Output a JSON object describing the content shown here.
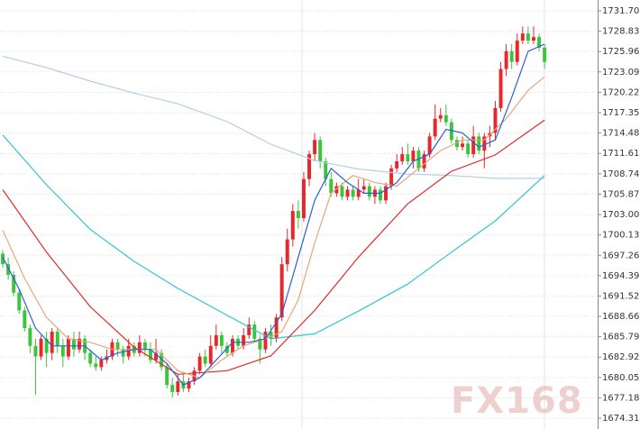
{
  "chart_data": {
    "type": "candlestick",
    "open": [
      1697.5,
      1696.0,
      1694.5,
      1692.0,
      1689.5,
      1687.0,
      1684.5,
      1683.0,
      1685.5,
      1683.5,
      1686.5,
      1684.5,
      1683.0,
      1685.5,
      1684.0,
      1685.5,
      1683.5,
      1682.0,
      1681.5,
      1682.5,
      1683.0,
      1685.0,
      1684.0,
      1683.0,
      1684.5,
      1683.5,
      1685.0,
      1684.0,
      1682.5,
      1683.5,
      1681.5,
      1679.0,
      1678.0,
      1679.5,
      1678.5,
      1679.5,
      1681.0,
      1683.0,
      1682.0,
      1684.5,
      1686.0,
      1684.5,
      1683.5,
      1685.5,
      1684.5,
      1686.0,
      1687.5,
      1685.5,
      1684.0,
      1686.5,
      1685.5,
      1688.5,
      1696.0,
      1699.5,
      1703.5,
      1702.5,
      1708.0,
      1711.5,
      1713.5,
      1710.5,
      1708.0,
      1706.0,
      1707.0,
      1705.5,
      1706.5,
      1705.5,
      1706.5,
      1707.0,
      1705.5,
      1706.5,
      1705.0,
      1707.0,
      1709.5,
      1710.5,
      1711.5,
      1710.5,
      1712.0,
      1709.5,
      1711.5,
      1714.0,
      1716.5,
      1717.0,
      1716.0,
      1713.5,
      1712.5,
      1713.0,
      1711.5,
      1714.0,
      1712.0,
      1714.0,
      1714.5,
      1718.0,
      1723.5,
      1726.0,
      1724.5,
      1727.5,
      1728.5,
      1727.5,
      1728.0,
      1726.5
    ],
    "high": [
      1698.0,
      1697.0,
      1695.0,
      1692.5,
      1690.0,
      1687.5,
      1685.5,
      1686.0,
      1686.5,
      1687.0,
      1687.0,
      1685.5,
      1686.0,
      1686.5,
      1686.5,
      1686.0,
      1684.0,
      1683.0,
      1683.0,
      1684.0,
      1685.5,
      1685.5,
      1684.5,
      1685.5,
      1685.0,
      1686.0,
      1685.5,
      1685.0,
      1685.5,
      1684.0,
      1682.0,
      1680.0,
      1680.5,
      1680.5,
      1680.0,
      1681.5,
      1683.5,
      1684.0,
      1686.0,
      1687.5,
      1686.5,
      1685.0,
      1686.0,
      1686.0,
      1687.0,
      1688.5,
      1688.0,
      1686.0,
      1687.0,
      1687.5,
      1689.0,
      1697.0,
      1701.0,
      1704.5,
      1705.0,
      1709.0,
      1712.0,
      1714.5,
      1714.0,
      1711.0,
      1709.0,
      1707.5,
      1707.5,
      1707.0,
      1707.0,
      1708.0,
      1708.0,
      1707.5,
      1707.0,
      1707.0,
      1707.5,
      1710.0,
      1711.5,
      1712.5,
      1713.0,
      1712.5,
      1712.5,
      1712.0,
      1714.5,
      1718.5,
      1718.0,
      1718.5,
      1716.5,
      1714.0,
      1714.0,
      1713.5,
      1715.5,
      1714.5,
      1714.5,
      1715.5,
      1719.0,
      1724.5,
      1727.0,
      1727.0,
      1728.5,
      1729.5,
      1729.5,
      1729.5,
      1728.5,
      1727.0
    ],
    "low": [
      1695.5,
      1693.8,
      1691.5,
      1689.0,
      1686.5,
      1683.5,
      1677.6,
      1682.5,
      1681.5,
      1682.5,
      1683.5,
      1681.5,
      1682.5,
      1683.0,
      1683.5,
      1682.5,
      1681.5,
      1681.0,
      1681.0,
      1682.0,
      1682.5,
      1683.0,
      1682.0,
      1682.5,
      1683.0,
      1683.0,
      1683.0,
      1682.0,
      1682.0,
      1681.0,
      1678.5,
      1677.2,
      1677.5,
      1678.0,
      1678.0,
      1679.0,
      1680.5,
      1681.5,
      1681.5,
      1684.0,
      1683.5,
      1683.0,
      1683.0,
      1684.0,
      1684.0,
      1685.5,
      1685.0,
      1682.0,
      1683.5,
      1684.5,
      1685.0,
      1688.0,
      1695.0,
      1698.5,
      1701.0,
      1702.0,
      1707.0,
      1710.5,
      1709.5,
      1707.0,
      1705.5,
      1705.5,
      1705.0,
      1705.0,
      1705.0,
      1705.0,
      1706.0,
      1705.0,
      1704.5,
      1704.5,
      1704.5,
      1706.5,
      1709.0,
      1710.0,
      1710.0,
      1709.5,
      1709.0,
      1709.0,
      1711.0,
      1713.5,
      1716.0,
      1715.5,
      1713.0,
      1712.0,
      1712.0,
      1711.0,
      1711.0,
      1711.5,
      1709.5,
      1712.5,
      1713.5,
      1717.5,
      1722.5,
      1723.5,
      1724.0,
      1727.0,
      1727.0,
      1727.0,
      1726.0,
      1723.5
    ],
    "close": [
      1696.0,
      1694.5,
      1692.0,
      1689.5,
      1687.0,
      1684.5,
      1683.0,
      1685.5,
      1683.5,
      1686.5,
      1684.5,
      1683.0,
      1685.5,
      1684.0,
      1685.5,
      1683.5,
      1682.0,
      1681.5,
      1682.5,
      1683.0,
      1685.0,
      1684.0,
      1683.0,
      1684.5,
      1683.5,
      1685.0,
      1684.0,
      1682.5,
      1683.5,
      1681.5,
      1679.0,
      1678.0,
      1679.5,
      1678.5,
      1679.5,
      1681.0,
      1683.0,
      1682.0,
      1684.5,
      1686.0,
      1684.5,
      1683.5,
      1685.5,
      1684.5,
      1686.0,
      1687.5,
      1685.5,
      1684.0,
      1686.5,
      1685.5,
      1688.5,
      1696.0,
      1699.5,
      1703.5,
      1702.5,
      1708.0,
      1711.5,
      1713.5,
      1710.5,
      1708.0,
      1706.0,
      1707.0,
      1705.5,
      1706.5,
      1705.5,
      1706.5,
      1707.0,
      1705.5,
      1706.5,
      1705.0,
      1707.0,
      1709.5,
      1710.5,
      1711.5,
      1710.5,
      1712.0,
      1709.5,
      1711.5,
      1714.0,
      1716.5,
      1717.0,
      1716.0,
      1713.5,
      1712.5,
      1713.0,
      1711.5,
      1714.0,
      1712.0,
      1714.0,
      1714.5,
      1718.0,
      1723.5,
      1726.0,
      1724.5,
      1727.5,
      1728.5,
      1727.5,
      1728.0,
      1726.5,
      1724.5
    ],
    "up_color": "#e8262b",
    "down_color": "#3dc43d",
    "series": [
      {
        "color": "#b8cde6",
        "x": [
          0,
          8,
          16,
          24,
          32,
          41,
          49,
          57,
          65,
          74,
          82,
          90,
          99
        ],
        "values": [
          1725.3,
          1723.7,
          1721.8,
          1720.1,
          1718.6,
          1716.1,
          1712.9,
          1710.6,
          1709.4,
          1708.7,
          1708.5,
          1708.1,
          1708.1
        ]
      },
      {
        "color": "#2fc7d0",
        "x": [
          0,
          8,
          16,
          24,
          32,
          41,
          49,
          57,
          65,
          74,
          82,
          90,
          99
        ],
        "values": [
          1714.2,
          1707.2,
          1700.9,
          1696.4,
          1692.6,
          1688.8,
          1685.5,
          1686.2,
          1689.4,
          1693.2,
          1697.7,
          1702.1,
          1708.5
        ]
      },
      {
        "color": "#e3282a",
        "x": [
          0,
          8,
          16,
          24,
          32,
          41,
          49,
          57,
          65,
          74,
          82,
          90,
          99
        ],
        "values": [
          1706.5,
          1697.7,
          1690.0,
          1684.3,
          1680.5,
          1681.0,
          1683.1,
          1689.5,
          1697.0,
          1704.5,
          1709.1,
          1711.4,
          1716.3
        ]
      },
      {
        "color": "#e4a77a",
        "x": [
          0,
          4,
          8,
          12,
          16,
          20,
          24,
          28,
          32,
          36,
          40,
          44,
          48,
          51,
          54,
          57,
          60,
          64,
          68,
          72,
          76,
          80,
          84,
          88,
          92,
          96,
          99
        ],
        "values": [
          1700.8,
          1694.0,
          1688.5,
          1685.5,
          1685.0,
          1684.0,
          1684.0,
          1684.0,
          1681.0,
          1680.0,
          1682.5,
          1684.5,
          1685.5,
          1686.5,
          1691.0,
          1699.0,
          1706.0,
          1708.5,
          1707.5,
          1707.0,
          1709.5,
          1712.0,
          1713.5,
          1713.5,
          1716.5,
          1720.5,
          1722.4
        ]
      },
      {
        "color": "#2a5fd6",
        "x": [
          0,
          3,
          6,
          9,
          12,
          15,
          18,
          21,
          24,
          27,
          30,
          33,
          36,
          39,
          42,
          45,
          48,
          51,
          54,
          57,
          60,
          63,
          66,
          69,
          72,
          75,
          78,
          81,
          84,
          87,
          90,
          93,
          96,
          99
        ],
        "values": [
          1697.0,
          1692.5,
          1687.0,
          1684.5,
          1684.5,
          1684.5,
          1682.5,
          1683.5,
          1684.0,
          1684.0,
          1682.0,
          1679.0,
          1680.0,
          1682.5,
          1685.0,
          1685.0,
          1685.5,
          1689.0,
          1697.0,
          1705.0,
          1709.5,
          1707.5,
          1706.0,
          1706.0,
          1707.5,
          1710.5,
          1711.5,
          1715.0,
          1714.5,
          1712.5,
          1713.5,
          1719.5,
          1726.0,
          1727.0
        ]
      }
    ],
    "xlim": [
      -0.5,
      108.7
    ],
    "ylim": [
      1672.79,
      1733.22
    ],
    "yticks": [
      {
        "value": 1731.7,
        "label": "1731.70"
      },
      1728.83,
      1725.96,
      1723.09,
      1720.22,
      1717.35,
      1714.48,
      1711.61,
      1708.74,
      1705.87,
      {
        "value": 1703,
        "label": "1703.00"
      },
      1700.13,
      1697.26,
      1694.39,
      1691.52,
      1688.66,
      1685.79,
      1682.92,
      1680.05,
      1677.18,
      1674.31
    ],
    "grid": true,
    "watermark": "FX168"
  }
}
